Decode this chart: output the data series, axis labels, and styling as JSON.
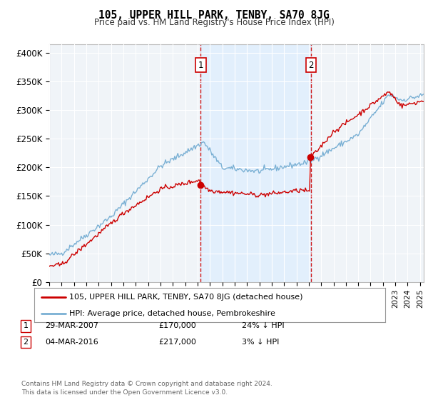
{
  "title": "105, UPPER HILL PARK, TENBY, SA70 8JG",
  "subtitle": "Price paid vs. HM Land Registry's House Price Index (HPI)",
  "ylabel_ticks": [
    "£0",
    "£50K",
    "£100K",
    "£150K",
    "£200K",
    "£250K",
    "£300K",
    "£350K",
    "£400K"
  ],
  "ytick_values": [
    0,
    50000,
    100000,
    150000,
    200000,
    250000,
    300000,
    350000,
    400000
  ],
  "ylim": [
    0,
    415000
  ],
  "xlim_start": 1995.0,
  "xlim_end": 2025.3,
  "hpi_color": "#7ab0d4",
  "price_color": "#cc0000",
  "vline_color": "#cc0000",
  "shade_color": "#ddeeff",
  "sale1_year": 2007.25,
  "sale1_price": 170000,
  "sale2_year": 2016.17,
  "sale2_price": 217000,
  "legend_label1": "105, UPPER HILL PARK, TENBY, SA70 8JG (detached house)",
  "legend_label2": "HPI: Average price, detached house, Pembrokeshire",
  "table_row1": [
    "1",
    "29-MAR-2007",
    "£170,000",
    "24% ↓ HPI"
  ],
  "table_row2": [
    "2",
    "04-MAR-2016",
    "£217,000",
    "3% ↓ HPI"
  ],
  "footnote": "Contains HM Land Registry data © Crown copyright and database right 2024.\nThis data is licensed under the Open Government Licence v3.0.",
  "background_color": "#ffffff",
  "plot_bg_color": "#f0f4f8"
}
